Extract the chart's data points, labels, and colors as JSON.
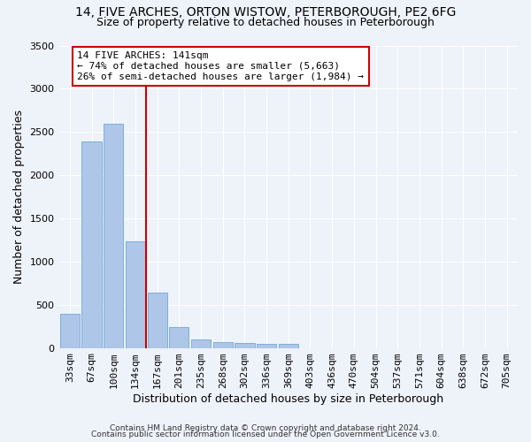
{
  "title1": "14, FIVE ARCHES, ORTON WISTOW, PETERBOROUGH, PE2 6FG",
  "title2": "Size of property relative to detached houses in Peterborough",
  "xlabel": "Distribution of detached houses by size in Peterborough",
  "ylabel": "Number of detached properties",
  "footnote1": "Contains HM Land Registry data © Crown copyright and database right 2024.",
  "footnote2": "Contains public sector information licensed under the Open Government Licence v3.0.",
  "categories": [
    "33sqm",
    "67sqm",
    "100sqm",
    "134sqm",
    "167sqm",
    "201sqm",
    "235sqm",
    "268sqm",
    "302sqm",
    "336sqm",
    "369sqm",
    "403sqm",
    "436sqm",
    "470sqm",
    "504sqm",
    "537sqm",
    "571sqm",
    "604sqm",
    "638sqm",
    "672sqm",
    "705sqm"
  ],
  "values": [
    390,
    2390,
    2590,
    1230,
    640,
    245,
    100,
    72,
    60,
    52,
    48,
    0,
    0,
    0,
    0,
    0,
    0,
    0,
    0,
    0,
    0
  ],
  "bar_color": "#aec6e8",
  "bar_edge_color": "#5a9fd4",
  "red_line_color": "#cc0000",
  "annotation_line1": "14 FIVE ARCHES: 141sqm",
  "annotation_line2": "← 74% of detached houses are smaller (5,663)",
  "annotation_line3": "26% of semi-detached houses are larger (1,984) →",
  "annotation_box_color": "#ffffff",
  "annotation_box_edge": "#cc0000",
  "ylim": [
    0,
    3500
  ],
  "yticks": [
    0,
    500,
    1000,
    1500,
    2000,
    2500,
    3000,
    3500
  ],
  "background_color": "#eef2f9",
  "axes_background": "#eef2f9",
  "grid_color": "#ffffff",
  "title1_fontsize": 10,
  "title2_fontsize": 9,
  "xlabel_fontsize": 9,
  "ylabel_fontsize": 9,
  "tick_fontsize": 8,
  "annotation_fontsize": 8
}
